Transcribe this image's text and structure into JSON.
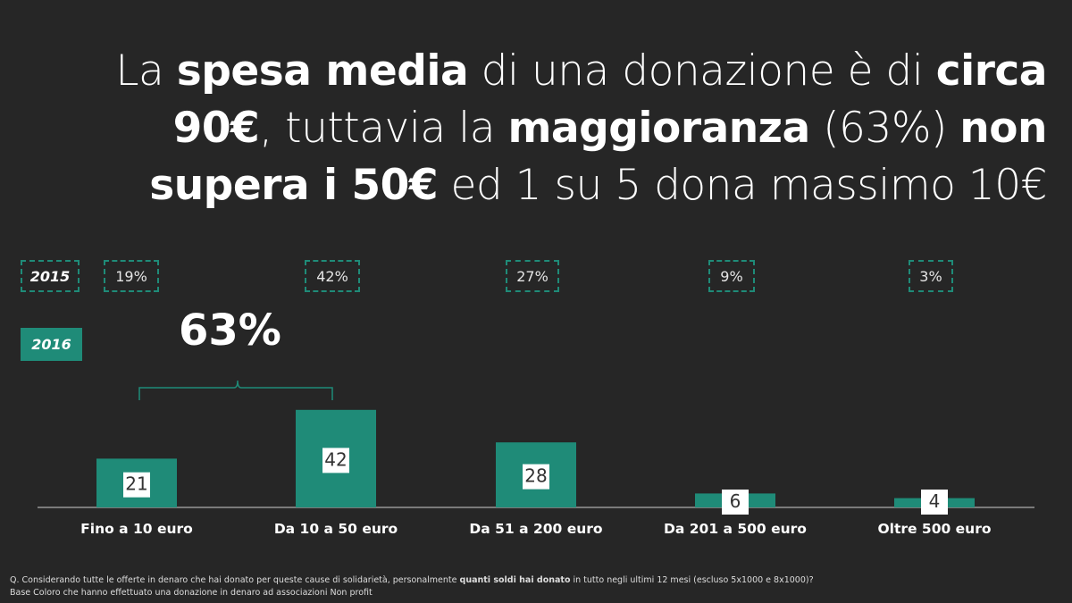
{
  "title": {
    "parts": [
      {
        "text": "La ",
        "bold": false
      },
      {
        "text": "spesa media",
        "bold": true
      },
      {
        "text": " di una donazione è di ",
        "bold": false
      },
      {
        "text": "circa 90€",
        "bold": true
      },
      {
        "text": ", tuttavia la ",
        "bold": false
      },
      {
        "text": "maggioranza",
        "bold": true
      },
      {
        "text": " (63%) ",
        "bold": false
      },
      {
        "text": "non supera i 50€",
        "bold": true
      },
      {
        "text": " ed 1 su 5 dona massimo 10€",
        "bold": false
      }
    ]
  },
  "legend": {
    "prev_year": "2015",
    "curr_year": "2016"
  },
  "bracket_label": "63%",
  "colors": {
    "bar": "#1f8b78",
    "background": "#262626",
    "accent": "#1f8b78"
  },
  "chart_data": {
    "type": "bar",
    "categories": [
      "Fino a 10 euro",
      "Da 10 a 50 euro",
      "Da 51 a 200 euro",
      "Da 201 a 500 euro",
      "Oltre 500 euro"
    ],
    "series": [
      {
        "name": "2016",
        "values": [
          21,
          42,
          28,
          6,
          4
        ]
      }
    ],
    "previous_year": {
      "name": "2015",
      "labels": [
        "19%",
        "42%",
        "27%",
        "9%",
        "3%"
      ]
    },
    "ylim": [
      0,
      50
    ]
  },
  "footnote": {
    "line1_parts": [
      {
        "text": "Q. Considerando tutte le offerte in denaro che hai donato per queste cause di solidarietà, personalmente ",
        "bold": false
      },
      {
        "text": "quanti soldi hai donato",
        "bold": true
      },
      {
        "text": " in tutto negli ultimi 12 mesi (escluso 5x1000 e 8x1000)?",
        "bold": false
      }
    ],
    "line2": "Base Coloro che hanno effettuato una donazione in denaro ad associazioni Non profit"
  }
}
